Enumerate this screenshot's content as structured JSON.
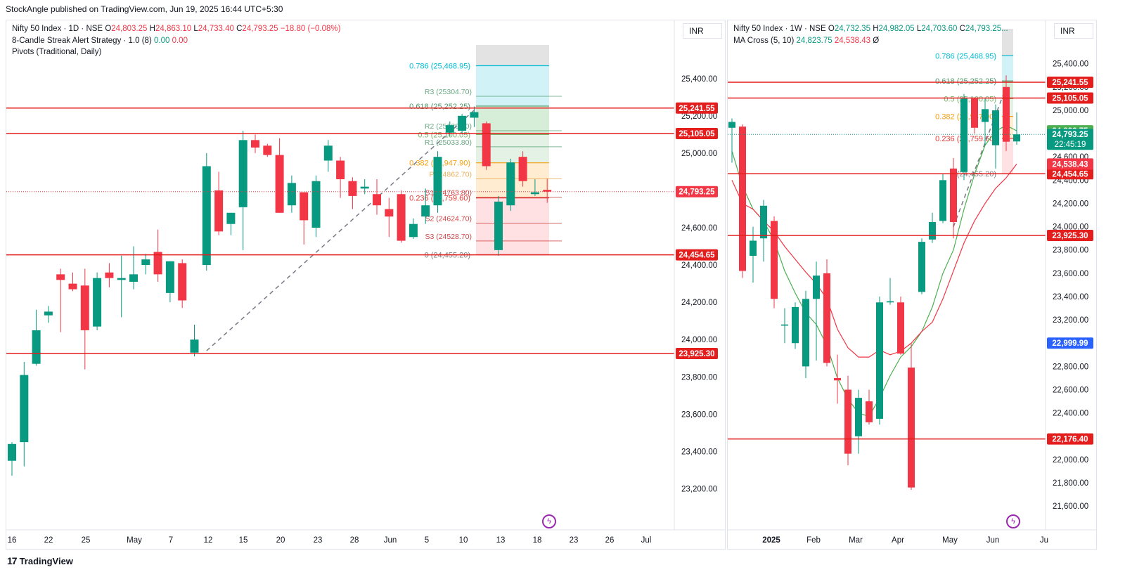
{
  "header": {
    "publisher_line": "StockAngle published on TradingView.com, Jun 19, 2025 16:44 UTC+5:30"
  },
  "footer": {
    "logo_text": "TradingView",
    "logo_mark": "17"
  },
  "colors": {
    "up": "#089981",
    "down": "#f23645",
    "level_line": "#e41d1d",
    "fib_0786": "#00bcd4",
    "fib_0618": "#4c9a6c",
    "fib_05": "#76b66a",
    "fib_0382": "#f59e0b",
    "fib_0236": "#e53935",
    "fib_0": "#808080",
    "ma_fast": "#4caf50",
    "ma_slow": "#f23645"
  },
  "left_chart": {
    "legend": {
      "symbol": "Nifty 50 Index · 1D · NSE",
      "o_label": "O",
      "o_value": "24,803.25",
      "h_label": "H",
      "h_value": "24,863.10",
      "l_label": "L",
      "l_value": "24,733.40",
      "c_label": "C",
      "c_value": "24,793.25",
      "change": "−18.80 (−0.08%)",
      "strategy": "8-Candle Streak Alert Strategy · 1.0 (8)",
      "strategy_v1": "0.00",
      "strategy_v2": "0.00",
      "pivots": "Pivots (Traditional, Daily)"
    },
    "currency": "INR"
  },
  "right_chart": {
    "legend": {
      "symbol": "Nifty 50 Index · 1W · NSE",
      "o_label": "O",
      "o_value": "24,732.35",
      "h_label": "H",
      "h_value": "24,982.05",
      "l_label": "L",
      "l_value": "24,703.60",
      "c_label": "C",
      "c_value": "24,793.25...",
      "ma": "MA Cross (5, 10)",
      "ma_v1": "24,823.75",
      "ma_v2": "24,538.43",
      "ma_v3": "Ø"
    },
    "currency": "INR"
  },
  "chart_data": [
    {
      "type": "candlestick",
      "title": "Nifty 50 Index · 1D · NSE",
      "ylim": [
        23100,
        25580
      ],
      "y_ticks": [
        "25,400.00",
        "25,200.00",
        "25,000.00",
        "24,800.00",
        "24,600.00",
        "24,400.00",
        "24,200.00",
        "24,000.00",
        "23,800.00",
        "23,600.00",
        "23,400.00",
        "23,200.00"
      ],
      "x_ticks": [
        "16",
        "22",
        "25",
        "May",
        "7",
        "12",
        "15",
        "20",
        "23",
        "28",
        "Jun",
        "5",
        "10",
        "13",
        "18",
        "23",
        "26",
        "Jul"
      ],
      "candles": [
        {
          "o": 23350,
          "h": 23450,
          "l": 23270,
          "c": 23440
        },
        {
          "o": 23450,
          "h": 23880,
          "l": 23320,
          "c": 23810
        },
        {
          "o": 23870,
          "h": 24160,
          "l": 23860,
          "c": 24050
        },
        {
          "o": 24130,
          "h": 24180,
          "l": 24090,
          "c": 24150
        },
        {
          "o": 24350,
          "h": 24380,
          "l": 24040,
          "c": 24320
        },
        {
          "o": 24300,
          "h": 24360,
          "l": 24260,
          "c": 24270
        },
        {
          "o": 24290,
          "h": 24380,
          "l": 23840,
          "c": 24050
        },
        {
          "o": 24070,
          "h": 24360,
          "l": 24050,
          "c": 24330
        },
        {
          "o": 24360,
          "h": 24410,
          "l": 24280,
          "c": 24330
        },
        {
          "o": 24320,
          "h": 24450,
          "l": 24120,
          "c": 24330
        },
        {
          "o": 24310,
          "h": 24500,
          "l": 24270,
          "c": 24350
        },
        {
          "o": 24400,
          "h": 24460,
          "l": 24350,
          "c": 24430
        },
        {
          "o": 24470,
          "h": 24590,
          "l": 24310,
          "c": 24350
        },
        {
          "o": 24250,
          "h": 24420,
          "l": 24200,
          "c": 24420
        },
        {
          "o": 24410,
          "h": 24430,
          "l": 24170,
          "c": 24210
        },
        {
          "o": 23930,
          "h": 24080,
          "l": 23910,
          "c": 24000
        },
        {
          "o": 24400,
          "h": 25000,
          "l": 24370,
          "c": 24930
        },
        {
          "o": 24800,
          "h": 24900,
          "l": 24560,
          "c": 24580
        },
        {
          "o": 24620,
          "h": 24680,
          "l": 24560,
          "c": 24680
        },
        {
          "o": 24710,
          "h": 25120,
          "l": 24480,
          "c": 25070
        },
        {
          "o": 25070,
          "h": 25100,
          "l": 25000,
          "c": 25030
        },
        {
          "o": 25040,
          "h": 25050,
          "l": 24980,
          "c": 24990
        },
        {
          "o": 24990,
          "h": 25080,
          "l": 24680,
          "c": 24680
        },
        {
          "o": 24720,
          "h": 24880,
          "l": 24680,
          "c": 24840
        },
        {
          "o": 24790,
          "h": 24790,
          "l": 24510,
          "c": 24640
        },
        {
          "o": 24600,
          "h": 24880,
          "l": 24550,
          "c": 24850
        },
        {
          "o": 24960,
          "h": 25070,
          "l": 24900,
          "c": 25040
        },
        {
          "o": 24960,
          "h": 24980,
          "l": 24760,
          "c": 24860
        },
        {
          "o": 24850,
          "h": 24870,
          "l": 24700,
          "c": 24770
        },
        {
          "o": 24810,
          "h": 24860,
          "l": 24780,
          "c": 24820
        },
        {
          "o": 24780,
          "h": 24860,
          "l": 24670,
          "c": 24720
        },
        {
          "o": 24700,
          "h": 24760,
          "l": 24550,
          "c": 24660
        },
        {
          "o": 24780,
          "h": 24800,
          "l": 24520,
          "c": 24530
        },
        {
          "o": 24550,
          "h": 24650,
          "l": 24540,
          "c": 24620
        },
        {
          "o": 24660,
          "h": 24810,
          "l": 24620,
          "c": 24720
        },
        {
          "o": 24720,
          "h": 25010,
          "l": 24680,
          "c": 24980
        },
        {
          "o": 25110,
          "h": 25170,
          "l": 25090,
          "c": 25150
        },
        {
          "o": 25120,
          "h": 25210,
          "l": 25100,
          "c": 25200
        },
        {
          "o": 25190,
          "h": 25250,
          "l": 25140,
          "c": 25220
        },
        {
          "o": 25160,
          "h": 25170,
          "l": 24910,
          "c": 24930
        },
        {
          "o": 24480,
          "h": 24770,
          "l": 24450,
          "c": 24740
        },
        {
          "o": 24720,
          "h": 24970,
          "l": 24690,
          "c": 24950
        },
        {
          "o": 24980,
          "h": 25010,
          "l": 24820,
          "c": 24850
        },
        {
          "o": 24780,
          "h": 24860,
          "l": 24770,
          "c": 24790
        },
        {
          "o": 24803.25,
          "h": 24863.1,
          "l": 24733.4,
          "c": 24793.25
        }
      ],
      "levels": [
        {
          "price": 25241.55,
          "label": "25,241.55"
        },
        {
          "price": 25105.05,
          "label": "25,105.05"
        },
        {
          "price": 24454.65,
          "label": "24,454.65"
        },
        {
          "price": 23925.3,
          "label": "23,925.30"
        }
      ],
      "last_price": {
        "price": 24793.25,
        "label": "24,793.25"
      },
      "fib": [
        {
          "ratio": "0.786",
          "price": 25468.95,
          "label": "0.786 (25,468.95)"
        },
        {
          "ratio": "0.618",
          "price": 25252.25,
          "label": "0.618 (25,252.25)"
        },
        {
          "ratio": "0.5",
          "price": 25100.05,
          "label": "0.5 (25,100.05)"
        },
        {
          "ratio": "0.382",
          "price": 24947.9,
          "label": "0.382 (24,947.90)"
        },
        {
          "ratio": "0.236",
          "price": 24759.6,
          "label": "0.236 (24,759.60)"
        },
        {
          "ratio": "0",
          "price": 24455.2,
          "label": "0 (24,455.20)"
        }
      ],
      "pivots": [
        {
          "name": "R3",
          "price": 25304.7,
          "label": "R3 (25304.70)"
        },
        {
          "name": "R2",
          "price": 25120,
          "label": "R2 (25120.00)"
        },
        {
          "name": "R1",
          "price": 25033.8,
          "label": "R1 (25033.80)"
        },
        {
          "name": "P",
          "price": 24862.7,
          "label": "P (24862.70)"
        },
        {
          "name": "S1",
          "price": 24763.8,
          "label": "S1 (24763.80)"
        },
        {
          "name": "S2",
          "price": 24624.7,
          "label": "S2 (24624.70)"
        },
        {
          "name": "S3",
          "price": 24528.7,
          "label": "S3 (24528.70)"
        }
      ]
    },
    {
      "type": "candlestick",
      "title": "Nifty 50 Index · 1W · NSE",
      "ylim": [
        21450,
        25700
      ],
      "y_ticks": [
        "25,400.00",
        "25,200.00",
        "25,000.00",
        "24,800.00",
        "24,600.00",
        "24,400.00",
        "24,200.00",
        "24,000.00",
        "23,800.00",
        "23,600.00",
        "23,400.00",
        "23,200.00",
        "23,000.00",
        "22,800.00",
        "22,600.00",
        "22,400.00",
        "22,200.00",
        "22,000.00",
        "21,800.00",
        "21,600.00"
      ],
      "x_ticks": [
        "2025",
        "Feb",
        "Mar",
        "Apr",
        "May",
        "Jun",
        "Ju"
      ],
      "candles": [
        {
          "o": 24850,
          "h": 24930,
          "l": 24550,
          "c": 24900
        },
        {
          "o": 24860,
          "h": 24880,
          "l": 23560,
          "c": 23620
        },
        {
          "o": 23750,
          "h": 24000,
          "l": 23520,
          "c": 23880
        },
        {
          "o": 23900,
          "h": 24230,
          "l": 23700,
          "c": 24180
        },
        {
          "o": 24050,
          "h": 24090,
          "l": 23300,
          "c": 23380
        },
        {
          "o": 23150,
          "h": 23300,
          "l": 23000,
          "c": 23160
        },
        {
          "o": 23000,
          "h": 23350,
          "l": 22950,
          "c": 23310
        },
        {
          "o": 22800,
          "h": 23450,
          "l": 22700,
          "c": 23380
        },
        {
          "o": 23380,
          "h": 23700,
          "l": 22850,
          "c": 23580
        },
        {
          "o": 23600,
          "h": 23720,
          "l": 22800,
          "c": 22830
        },
        {
          "o": 22700,
          "h": 22900,
          "l": 22480,
          "c": 22680
        },
        {
          "o": 22600,
          "h": 22720,
          "l": 21950,
          "c": 22050
        },
        {
          "o": 22200,
          "h": 22600,
          "l": 22050,
          "c": 22530
        },
        {
          "o": 22500,
          "h": 22600,
          "l": 22300,
          "c": 22320
        },
        {
          "o": 22350,
          "h": 23400,
          "l": 22300,
          "c": 23350
        },
        {
          "o": 23350,
          "h": 23560,
          "l": 23330,
          "c": 23360
        },
        {
          "o": 23350,
          "h": 23400,
          "l": 22900,
          "c": 22910
        },
        {
          "o": 22790,
          "h": 23000,
          "l": 21740,
          "c": 21760
        },
        {
          "o": 23440,
          "h": 23900,
          "l": 23420,
          "c": 23870
        },
        {
          "o": 23890,
          "h": 24120,
          "l": 23860,
          "c": 24040
        },
        {
          "o": 24050,
          "h": 24450,
          "l": 24030,
          "c": 24400
        },
        {
          "o": 24500,
          "h": 24590,
          "l": 23900,
          "c": 24040
        },
        {
          "o": 24470,
          "h": 25140,
          "l": 24400,
          "c": 25100
        },
        {
          "o": 25100,
          "h": 25110,
          "l": 24800,
          "c": 24850
        },
        {
          "o": 24900,
          "h": 25100,
          "l": 24700,
          "c": 25010
        },
        {
          "o": 24700,
          "h": 25050,
          "l": 24500,
          "c": 25000
        },
        {
          "o": 25200,
          "h": 25300,
          "l": 24650,
          "c": 24730
        },
        {
          "o": 24732.35,
          "h": 24982.05,
          "l": 24703.6,
          "c": 24793.25
        }
      ],
      "ma_fast_values": [
        24650,
        24350,
        24150,
        24050,
        23880,
        23620,
        23430,
        23260,
        23160,
        22980,
        22700,
        22520,
        22400,
        22370,
        22530,
        22720,
        22880,
        22970,
        23100,
        23310,
        23600,
        23800,
        24150,
        24450,
        24700,
        24820,
        24870,
        24823.75
      ],
      "ma_slow_values": [
        24400,
        24200,
        24150,
        24050,
        23960,
        23830,
        23720,
        23610,
        23510,
        23380,
        23120,
        22960,
        22880,
        22880,
        22940,
        22900,
        22930,
        23000,
        23100,
        23180,
        23380,
        23620,
        23860,
        24050,
        24200,
        24330,
        24420,
        24538.43
      ],
      "levels": [
        {
          "price": 25241.55,
          "label": "25,241.55"
        },
        {
          "price": 25105.05,
          "label": "25,105.05"
        },
        {
          "price": 24454.65,
          "label": "24,454.65"
        },
        {
          "price": 23925.3,
          "label": "23,925.30"
        },
        {
          "price": 22176.4,
          "label": "22,176.40"
        }
      ],
      "badges": [
        {
          "price": 24823.75,
          "label": "24,823.75",
          "color": "#4caf50"
        },
        {
          "price": 24793.25,
          "label": "24,793.25",
          "label2": "22:45:19",
          "color": "#089981"
        },
        {
          "price": 24538.43,
          "label": "24,538.43",
          "color": "#f23645"
        },
        {
          "price": 22999.99,
          "label": "22,999.99",
          "color": "#2962ff"
        }
      ],
      "fib": [
        {
          "ratio": "0.786",
          "price": 25468.95,
          "label": "0.786 (25,468.95)"
        },
        {
          "ratio": "0.618",
          "price": 25252.25,
          "label": "0.618 (25,252.25)"
        },
        {
          "ratio": "0.5",
          "price": 25100.05,
          "label": "0.5 (25,100.05)"
        },
        {
          "ratio": "0.382",
          "price": 24947.9,
          "label": "0.382 (24,947.90)"
        },
        {
          "ratio": "0.236",
          "price": 24759.6,
          "label": "0.236 (24,759.60)"
        },
        {
          "ratio": "0",
          "price": 24455.2,
          "label": "0 (24,455.20)"
        }
      ]
    }
  ]
}
